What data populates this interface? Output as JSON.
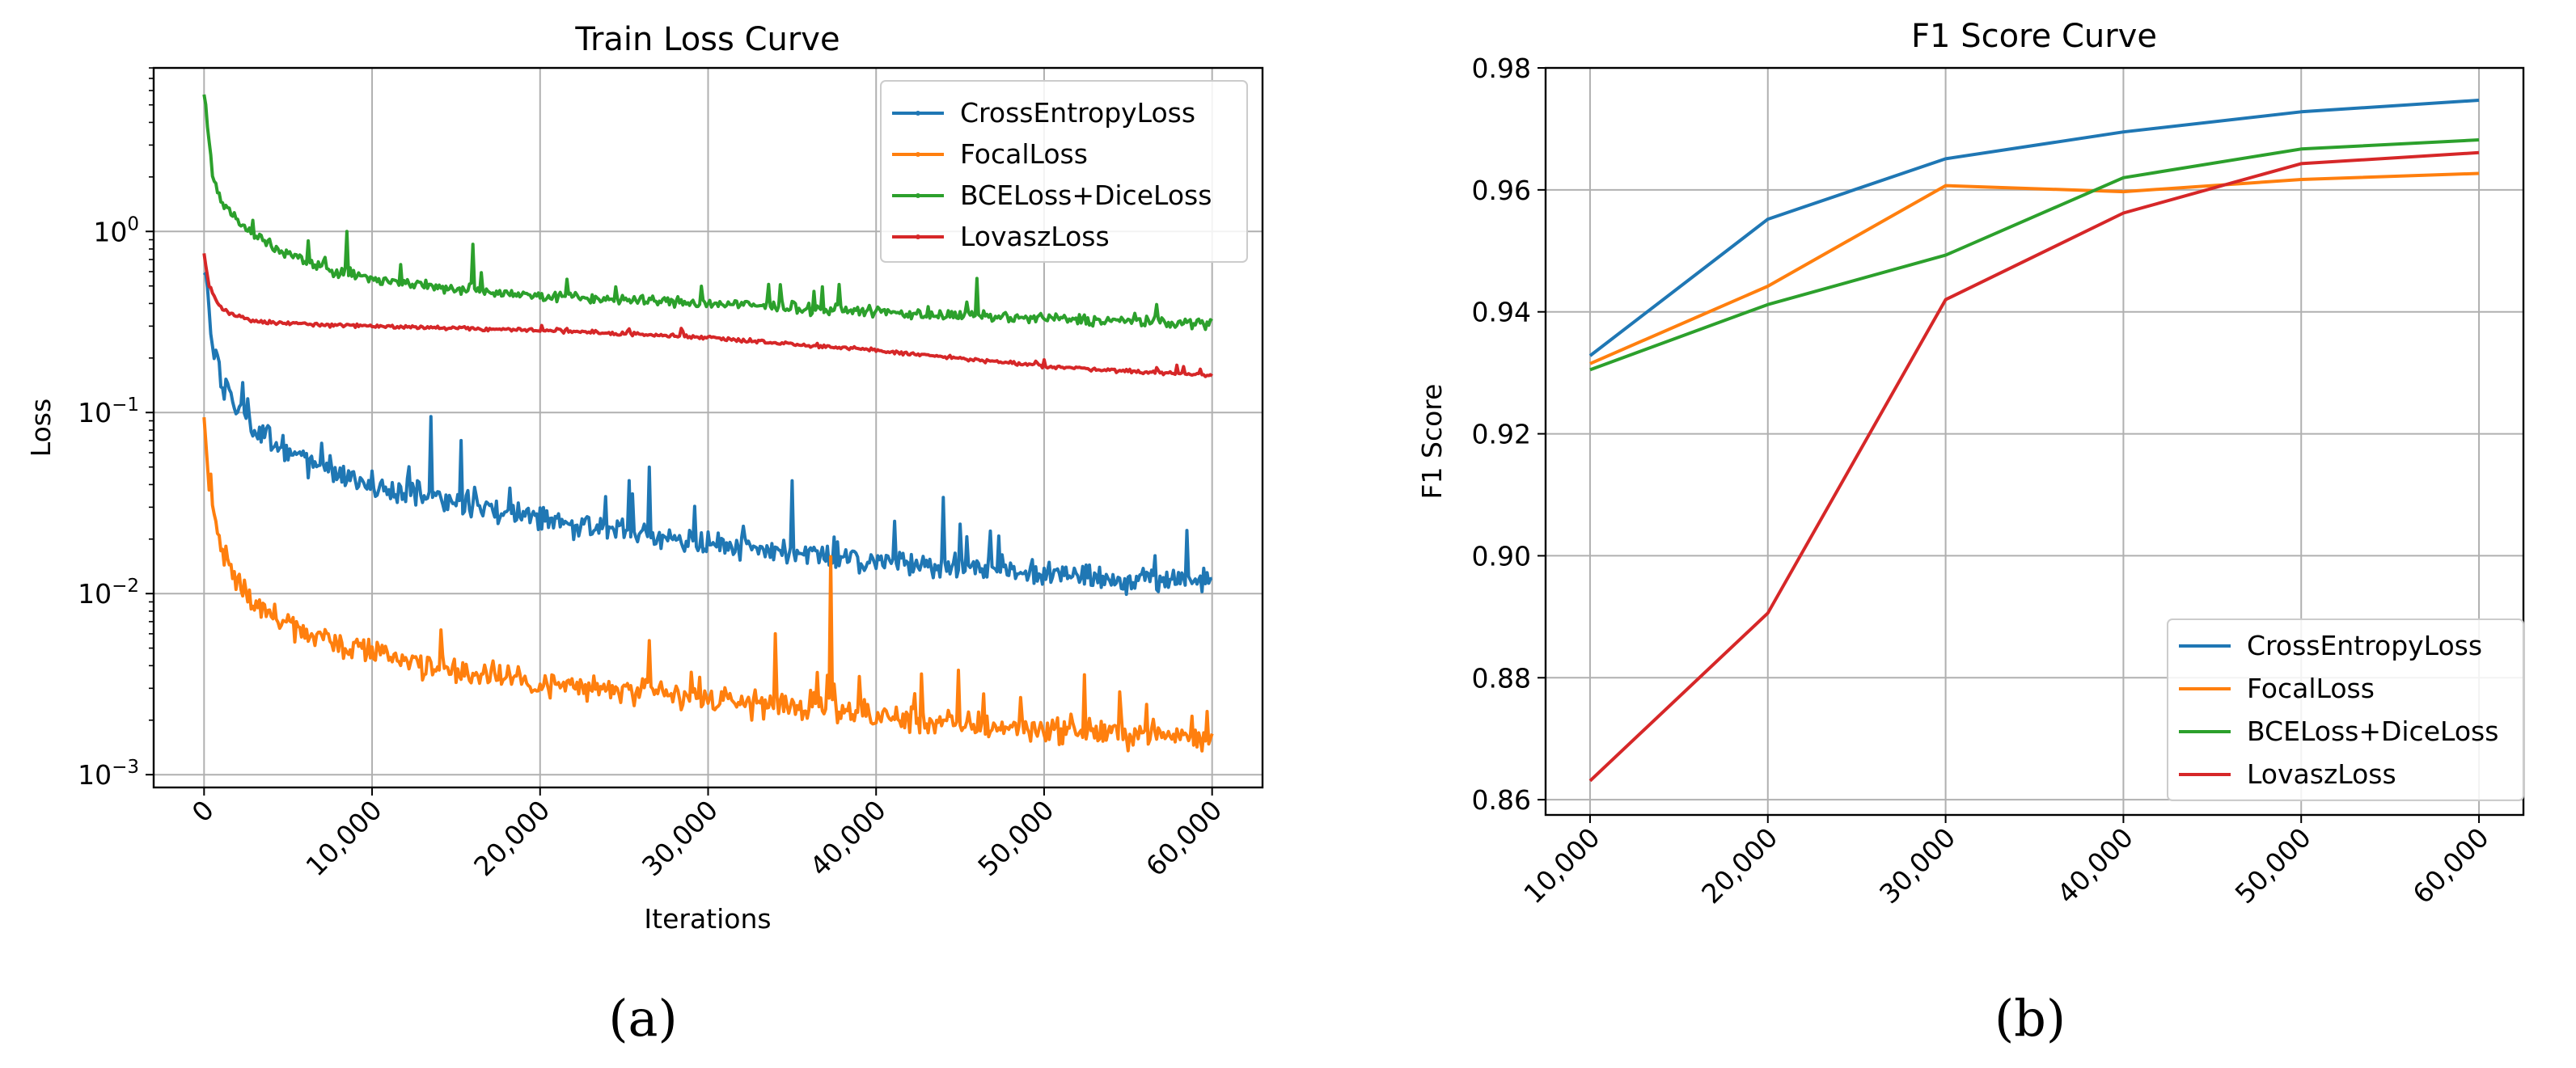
{
  "chart_data": [
    {
      "type": "line",
      "title": "Train Loss Curve",
      "xlabel": "Iterations",
      "ylabel": "Loss",
      "yscale": "log",
      "ylim": [
        0.00085,
        8
      ],
      "xlim": [
        -3000,
        63000
      ],
      "grid": true,
      "legend": "top-right",
      "xticks": [
        0,
        10000,
        20000,
        30000,
        40000,
        50000,
        60000
      ],
      "xtick_labels": [
        "0",
        "10,000",
        "20,000",
        "30,000",
        "40,000",
        "50,000",
        "60,000"
      ],
      "yticks": [
        0.001,
        0.01,
        0.1,
        1
      ],
      "ytick_labels": [
        {
          "base": "10",
          "exp": "−3"
        },
        {
          "base": "10",
          "exp": "−2"
        },
        {
          "base": "10",
          "exp": "−1"
        },
        {
          "base": "10",
          "exp": "0"
        }
      ],
      "series": [
        {
          "name": "CrossEntropyLoss",
          "color": "#1f77b4",
          "x": [
            0,
            500,
            1000,
            2000,
            3000,
            5000,
            8000,
            10000,
            15000,
            20000,
            25000,
            30000,
            35000,
            40000,
            45000,
            50000,
            55000,
            60000
          ],
          "y": [
            0.7,
            0.25,
            0.15,
            0.1,
            0.08,
            0.06,
            0.046,
            0.04,
            0.032,
            0.026,
            0.022,
            0.019,
            0.017,
            0.015,
            0.014,
            0.013,
            0.012,
            0.012
          ],
          "spikes": [
            [
              13500,
              0.095
            ],
            [
              15300,
              0.07
            ],
            [
              26500,
              0.05
            ],
            [
              35000,
              0.042
            ],
            [
              44000,
              0.034
            ]
          ],
          "noise": 0.2
        },
        {
          "name": "FocalLoss",
          "color": "#ff7f0e",
          "x": [
            0,
            500,
            1000,
            2000,
            3000,
            5000,
            8000,
            10000,
            15000,
            20000,
            25000,
            30000,
            35000,
            40000,
            45000,
            50000,
            55000,
            60000
          ],
          "y": [
            0.09,
            0.03,
            0.018,
            0.012,
            0.009,
            0.0068,
            0.0053,
            0.0047,
            0.0037,
            0.0032,
            0.0029,
            0.0026,
            0.0024,
            0.0021,
            0.0019,
            0.0018,
            0.0017,
            0.0016
          ],
          "spikes": [
            [
              37300,
              0.016
            ],
            [
              26500,
              0.0055
            ],
            [
              34000,
              0.006
            ]
          ],
          "noise": 0.22
        },
        {
          "name": "BCELoss+DiceLoss",
          "color": "#2ca02c",
          "x": [
            0,
            500,
            1000,
            2000,
            3000,
            5000,
            8000,
            10000,
            15000,
            20000,
            25000,
            30000,
            35000,
            40000,
            45000,
            50000,
            55000,
            60000
          ],
          "y": [
            6.0,
            2.0,
            1.5,
            1.15,
            0.95,
            0.75,
            0.6,
            0.55,
            0.48,
            0.44,
            0.42,
            0.4,
            0.38,
            0.36,
            0.34,
            0.33,
            0.32,
            0.31
          ],
          "spikes": [
            [
              8500,
              1.0
            ],
            [
              16000,
              0.85
            ],
            [
              46000,
              0.55
            ]
          ],
          "noise": 0.09
        },
        {
          "name": "LovaszLoss",
          "color": "#d62728",
          "x": [
            0,
            300,
            800,
            1500,
            3000,
            5000,
            10000,
            20000,
            30000,
            40000,
            50000,
            60000
          ],
          "y": [
            0.75,
            0.5,
            0.4,
            0.35,
            0.32,
            0.31,
            0.3,
            0.285,
            0.26,
            0.22,
            0.18,
            0.16
          ],
          "spikes": [],
          "noise": 0.03
        }
      ]
    },
    {
      "type": "line",
      "title": "F1 Score Curve",
      "xlabel": "",
      "ylabel": "F1 Score",
      "ylim": [
        0.8575,
        0.98
      ],
      "xlim": [
        7500,
        62500
      ],
      "grid": true,
      "legend": "bottom-right",
      "x": [
        10000,
        20000,
        30000,
        40000,
        50000,
        60000
      ],
      "xtick_labels": [
        "10,000",
        "20,000",
        "30,000",
        "40,000",
        "50,000",
        "60,000"
      ],
      "yticks": [
        0.86,
        0.88,
        0.9,
        0.92,
        0.94,
        0.96,
        0.98
      ],
      "ytick_labels": [
        "0.86",
        "0.88",
        "0.90",
        "0.92",
        "0.94",
        "0.96",
        "0.98"
      ],
      "series": [
        {
          "name": "CrossEntropyLoss",
          "color": "#1f77b4",
          "values": [
            0.9328,
            0.9552,
            0.9651,
            0.9695,
            0.9728,
            0.9747
          ]
        },
        {
          "name": "FocalLoss",
          "color": "#ff7f0e",
          "values": [
            0.9315,
            0.9442,
            0.9607,
            0.9597,
            0.9617,
            0.9627
          ]
        },
        {
          "name": "BCELoss+DiceLoss",
          "color": "#2ca02c",
          "values": [
            0.9305,
            0.9412,
            0.9493,
            0.962,
            0.9667,
            0.9682
          ]
        },
        {
          "name": "LovaszLoss",
          "color": "#d62728",
          "values": [
            0.8631,
            0.8906,
            0.942,
            0.9562,
            0.9643,
            0.9661
          ]
        }
      ]
    }
  ],
  "captions": [
    "(a)",
    "(b)"
  ]
}
